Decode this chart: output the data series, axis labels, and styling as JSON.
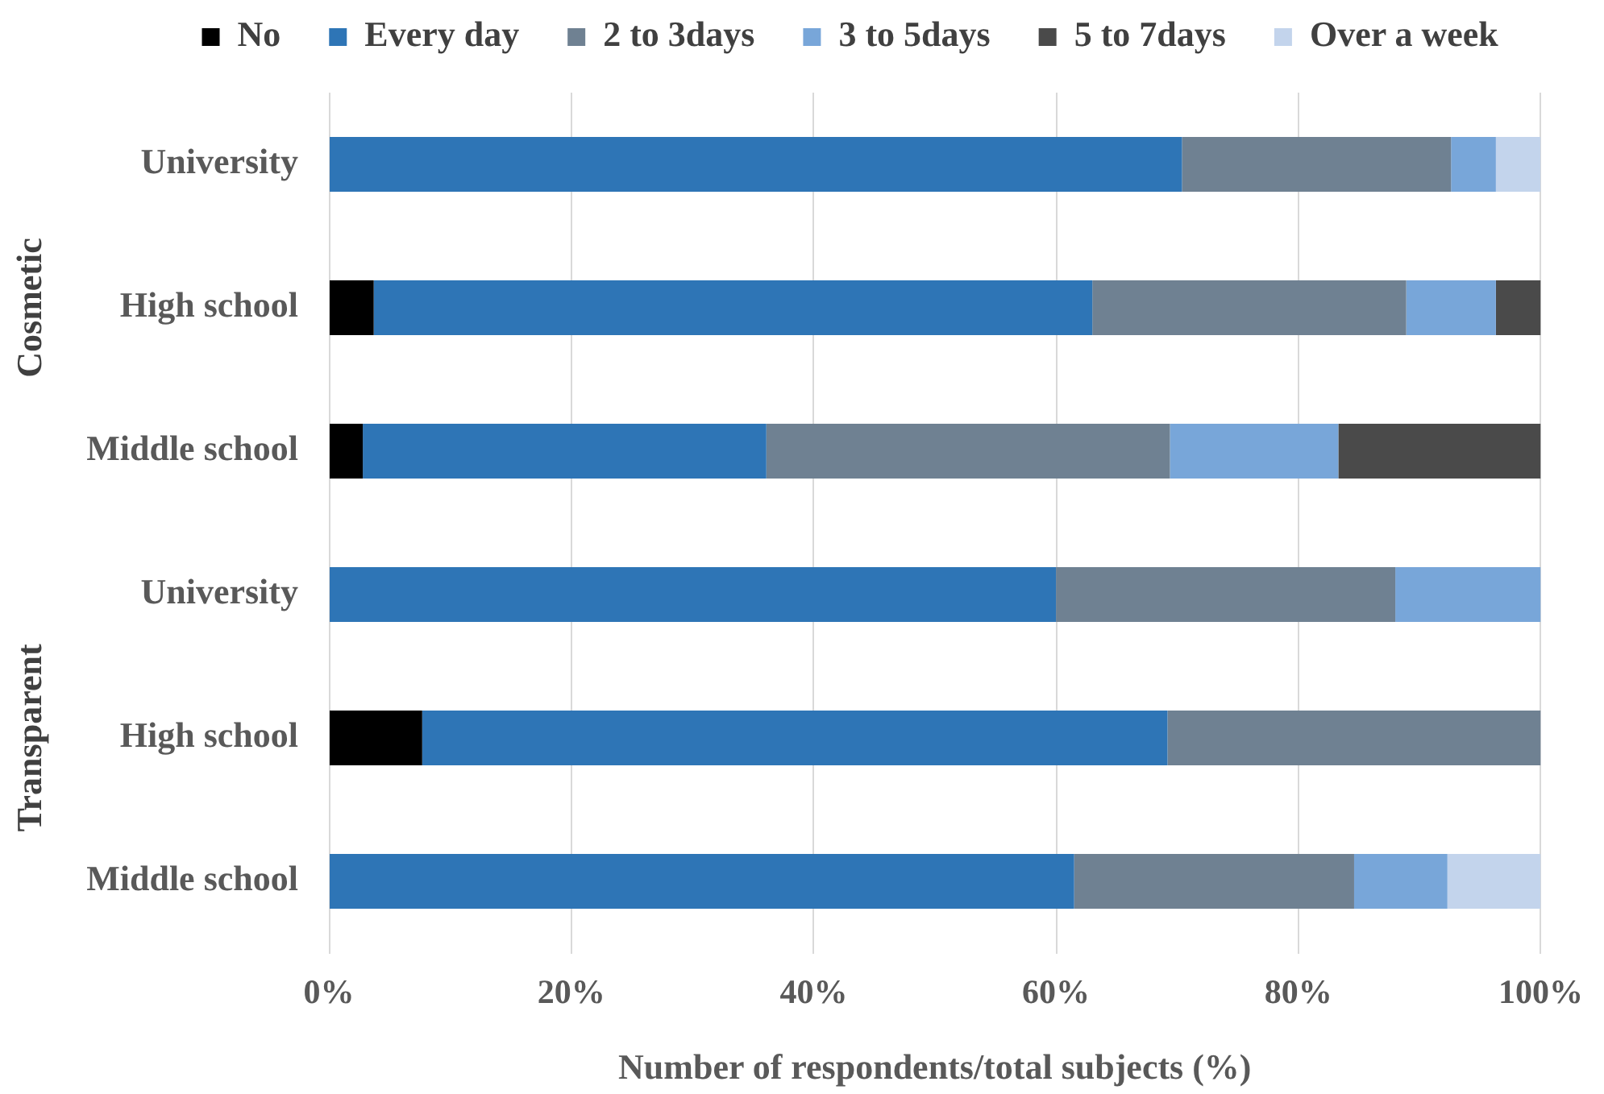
{
  "chart_data": {
    "type": "bar",
    "orientation": "horizontal",
    "stacked": true,
    "categories": [
      "University",
      "High school",
      "Middle school",
      "University",
      "High school",
      "Middle school"
    ],
    "series": [
      {
        "name": "No",
        "color": "#000000",
        "values": [
          null,
          3.7,
          2.8,
          null,
          7.7,
          null
        ]
      },
      {
        "name": "Every day",
        "color": "#2e75b6",
        "values": [
          70.4,
          59.3,
          33.3,
          60,
          61.5,
          61.5
        ]
      },
      {
        "name": "2 to 3days",
        "color": "#6f8192",
        "values": [
          22.2,
          25.9,
          33.3,
          28,
          30.8,
          23.1
        ]
      },
      {
        "name": "3 to 5days",
        "color": "#78a6d9",
        "values": [
          3.7,
          7.4,
          13.9,
          12,
          null,
          7.7
        ]
      },
      {
        "name": "5 to 7days",
        "color": "#4a4a4a",
        "values": [
          null,
          3.7,
          16.7,
          null,
          null,
          null
        ]
      },
      {
        "name": "Over a week",
        "color": "#c3d4ec",
        "values": [
          3.7,
          null,
          null,
          null,
          null,
          7.7
        ]
      }
    ],
    "xlim": [
      0,
      100
    ],
    "xticks": [
      {
        "value": 0,
        "label": "0%"
      },
      {
        "value": 20,
        "label": "20%"
      },
      {
        "value": 40,
        "label": "40%"
      },
      {
        "value": 60,
        "label": "60%"
      },
      {
        "value": 80,
        "label": "80%"
      },
      {
        "value": 100,
        "label": "100%"
      }
    ],
    "xlabel": "Number of respondents/total subjects (%)",
    "annotations": [
      "Cosmetic",
      "Transparent"
    ],
    "grid": "x",
    "legend": "top"
  }
}
